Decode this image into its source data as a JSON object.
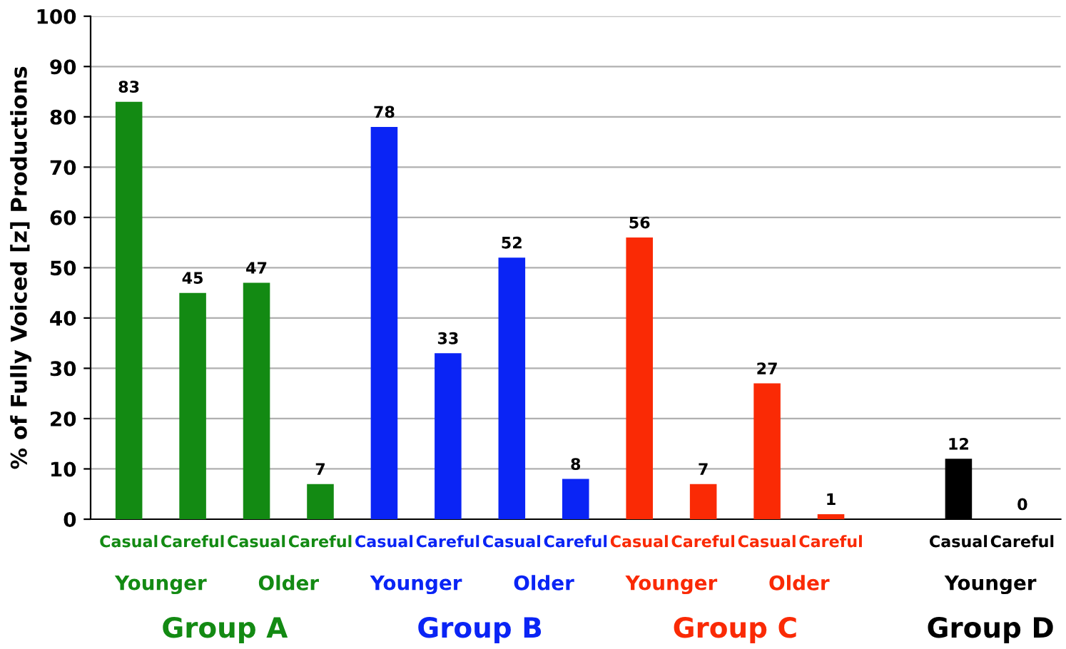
{
  "chart_data": {
    "type": "bar",
    "ylabel": "% of Fully Voiced [z] Productions",
    "categories": [
      "Casual",
      "Careful",
      "Casual",
      "Careful",
      "Casual",
      "Careful",
      "Casual",
      "Careful",
      "Casual",
      "Careful",
      "Casual",
      "Careful",
      null,
      "Casual",
      "Careful"
    ],
    "values": [
      83,
      45,
      47,
      7,
      78,
      33,
      52,
      8,
      56,
      7,
      27,
      1,
      null,
      12,
      0
    ],
    "colors": [
      "#138a13",
      "#138a13",
      "#138a13",
      "#138a13",
      "#0a24f5",
      "#0a24f5",
      "#0a24f5",
      "#0a24f5",
      "#fa2a05",
      "#fa2a05",
      "#fa2a05",
      "#fa2a05",
      null,
      "#000000",
      "#000000"
    ],
    "ylim": [
      0,
      100
    ],
    "yticks": [
      0,
      10,
      20,
      30,
      40,
      50,
      60,
      70,
      80,
      90,
      100
    ],
    "grid": "y",
    "data_labels": true,
    "annotations": [
      "Younger",
      "Older",
      "Younger",
      "Older",
      "Younger",
      "Older",
      "Younger",
      "Group A",
      "Group B",
      "Group C",
      "Group D"
    ]
  }
}
